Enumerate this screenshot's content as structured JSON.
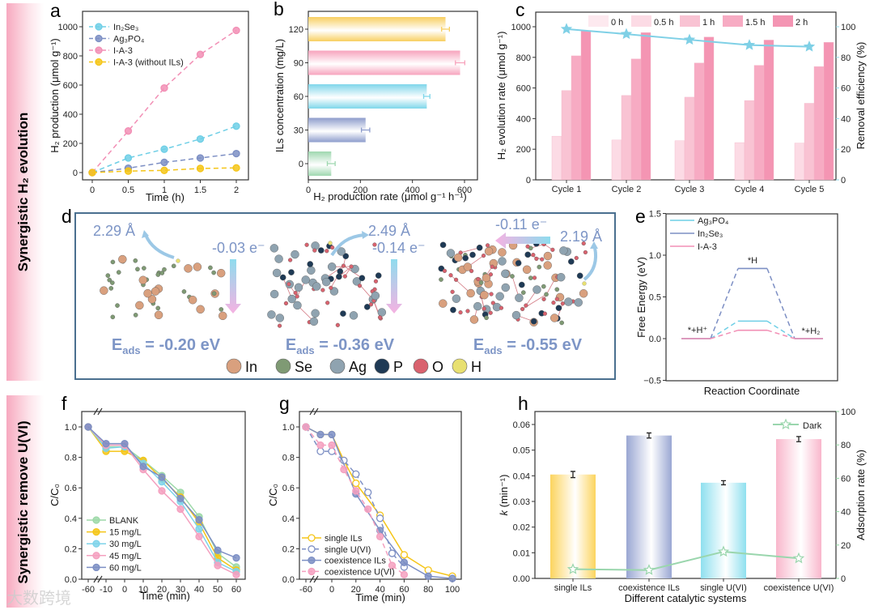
{
  "banners": {
    "top": "Synergistic H₂ evolution",
    "bottom": "Synergistic remove U(VI)"
  },
  "panel_letters": {
    "a": "a",
    "b": "b",
    "c": "c",
    "d": "d",
    "e": "e",
    "f": "f",
    "g": "g",
    "h": "h"
  },
  "watermark": "大数跨境",
  "colors": {
    "in2se3": "#6fcfe6",
    "ag3po4": "#7d8fc4",
    "ia3": "#f28fb5",
    "noils": "#f5c518",
    "blank": "#9dd9a8",
    "green": "#9fd8b0",
    "dark": "#9ad6ad",
    "frame": "#4a6f8f",
    "dtext": "#7d95c6"
  },
  "panel_d": {
    "labels": {
      "d1": "2.29 Å",
      "e1": "-0.03 e⁻",
      "d2": "2.49 Å",
      "e2": "-0.14 e⁻",
      "e3": "-0.11 e⁻",
      "d3": "2.19 Å"
    },
    "eads": [
      {
        "sym": "E",
        "sub": "ads",
        "val": " = -0.20 eV"
      },
      {
        "sym": "E",
        "sub": "ads",
        "val": " = -0.36 eV"
      },
      {
        "sym": "E",
        "sub": "ads",
        "val": " = -0.55 eV"
      }
    ],
    "atoms": [
      {
        "name": "In",
        "color": "#d9a07e"
      },
      {
        "name": "Se",
        "color": "#7f9a74"
      },
      {
        "name": "Ag",
        "color": "#8fa3b0"
      },
      {
        "name": "P",
        "color": "#1f3a55"
      },
      {
        "name": "O",
        "color": "#d9626e"
      },
      {
        "name": "H",
        "color": "#e8e070"
      }
    ]
  },
  "chart_data": [
    {
      "panel": "a",
      "type": "line",
      "xlabel": "Time (h)",
      "ylabel": "H₂ production (μmol g⁻¹)",
      "xlim": [
        -0.2,
        2.2
      ],
      "ylim": [
        -50,
        1080
      ],
      "xticks": [
        0,
        0.5,
        1,
        1.5,
        2
      ],
      "xticklabels": [
        "0",
        "0.5",
        "1",
        "1.5",
        "2"
      ],
      "yticks": [
        0,
        200,
        400,
        600,
        800,
        1000
      ],
      "yticklabels": [
        "0",
        "200",
        "400",
        "600",
        "800",
        "1000"
      ],
      "x": [
        0,
        0.5,
        1,
        1.5,
        2
      ],
      "legend": "top-left",
      "series": [
        {
          "name": "In₂Se₃",
          "color": "#6fcfe6",
          "values": [
            0,
            100,
            160,
            230,
            318
          ]
        },
        {
          "name": "Ag₃PO₄",
          "color": "#7d8fc4",
          "values": [
            0,
            30,
            70,
            100,
            130
          ]
        },
        {
          "name": "I-A-3",
          "color": "#f28fb5",
          "values": [
            0,
            285,
            580,
            810,
            975
          ]
        },
        {
          "name": "I-A-3 (without ILs)",
          "color": "#f5c518",
          "values": [
            0,
            10,
            15,
            28,
            32
          ]
        }
      ]
    },
    {
      "panel": "b",
      "type": "bar",
      "orientation": "horizontal",
      "xlabel": "H₂ production rate (μmol g⁻¹ h⁻¹)",
      "ylabel": "ILs concentration (mg/L)",
      "xlim": [
        0,
        620
      ],
      "xticks": [
        0,
        200,
        400,
        600
      ],
      "xticklabels": [
        "0",
        "200",
        "400",
        "600"
      ],
      "categories": [
        "0",
        "30",
        "60",
        "90",
        "120"
      ],
      "values": [
        88,
        220,
        455,
        583,
        527
      ],
      "errors": [
        15,
        16,
        12,
        18,
        15
      ],
      "colors": [
        "#9fd8b0",
        "#8d9ccc",
        "#7fd6ea",
        "#f7a3bd",
        "#f8cf60"
      ]
    },
    {
      "panel": "c",
      "type": "bar",
      "xlabel": "",
      "ylabel": "H₂ evolution rate (μmol g⁻¹)",
      "y2label": "Removal efficiency (%)",
      "ylim": [
        0,
        1100
      ],
      "y2lim": [
        0,
        110
      ],
      "yticks": [
        0,
        200,
        400,
        600,
        800,
        1000
      ],
      "yticklabels": [
        "0",
        "200",
        "400",
        "600",
        "800",
        "1000"
      ],
      "y2ticks": [
        0,
        20,
        40,
        60,
        80,
        100
      ],
      "y2ticklabels": [
        "0",
        "20",
        "40",
        "60",
        "80",
        "100"
      ],
      "categories": [
        "Cycle 1",
        "Cycle 2",
        "Cycle 3",
        "Cycle 4",
        "Cycle 5"
      ],
      "legend": "top",
      "series": [
        {
          "name": "0 h",
          "color": "#fde9ef",
          "values": [
            0,
            0,
            0,
            0,
            0
          ]
        },
        {
          "name": "0.5 h",
          "color": "#fcdbe5",
          "values": [
            285,
            260,
            255,
            243,
            240
          ]
        },
        {
          "name": "1 h",
          "color": "#f9c3d3",
          "values": [
            583,
            551,
            540,
            518,
            500
          ]
        },
        {
          "name": "1.5 h",
          "color": "#f7abc3",
          "values": [
            810,
            790,
            763,
            748,
            740
          ]
        },
        {
          "name": "2 h",
          "color": "#f495b3",
          "values": [
            975,
            962,
            933,
            913,
            898
          ]
        }
      ],
      "line": {
        "name": "Removal efficiency",
        "color": "#7fd0e6",
        "values": [
          98.5,
          95.2,
          91.5,
          88,
          87
        ]
      }
    },
    {
      "panel": "e",
      "type": "line",
      "xlabel": "Reaction Coordinate",
      "ylabel": "Free Energy (eV)",
      "ylim": [
        -0.5,
        1.5
      ],
      "yticks": [
        -0.5,
        0,
        0.5,
        1,
        1.5
      ],
      "yticklabels": [
        "−0.5",
        "0.0",
        "0.5",
        "1.0",
        "1.5"
      ],
      "states": [
        "*+H⁺",
        "*H",
        "*+H₂"
      ],
      "legend": "top-left",
      "series": [
        {
          "name": "Ag₃PO₄",
          "color": "#6fcfe6",
          "values": [
            0,
            0.21,
            0
          ]
        },
        {
          "name": "In₂Se₃",
          "color": "#7d8fc4",
          "values": [
            0,
            0.84,
            0
          ]
        },
        {
          "name": "I-A-3",
          "color": "#f28fb5",
          "values": [
            0,
            0.1,
            0
          ]
        }
      ]
    },
    {
      "panel": "f",
      "type": "line",
      "xlabel": "Time (min)",
      "ylabel": "C/C₀",
      "ylim": [
        0,
        1.1
      ],
      "axis_break": true,
      "xticks": [
        -60,
        -10,
        0,
        10,
        20,
        30,
        40,
        50,
        60
      ],
      "xticklabels": [
        "-60",
        "-10",
        "0",
        "10",
        "20",
        "30",
        "40",
        "50",
        "60"
      ],
      "yticks": [
        0,
        0.2,
        0.4,
        0.6,
        0.8,
        1.0
      ],
      "yticklabels": [
        "0.0",
        "0.2",
        "0.4",
        "0.6",
        "0.8",
        "1.0"
      ],
      "legend": "bottom-left",
      "x": [
        -60,
        -10,
        0,
        10,
        20,
        30,
        40,
        50,
        60
      ],
      "series": [
        {
          "name": "BLANK",
          "color": "#9dd9a8",
          "values": [
            1,
            0.87,
            0.87,
            0.78,
            0.68,
            0.57,
            0.41,
            0.17,
            0.08
          ]
        },
        {
          "name": "15 mg/L",
          "color": "#f5c518",
          "values": [
            1,
            0.84,
            0.84,
            0.78,
            0.66,
            0.54,
            0.37,
            0.14,
            0.06
          ]
        },
        {
          "name": "30 mg/L",
          "color": "#7fd3ea",
          "values": [
            1,
            0.86,
            0.87,
            0.76,
            0.64,
            0.51,
            0.33,
            0.11,
            0.05
          ]
        },
        {
          "name": "45 mg/L",
          "color": "#f4a0bf",
          "values": [
            1,
            0.88,
            0.88,
            0.72,
            0.58,
            0.46,
            0.28,
            0.09,
            0.03
          ]
        },
        {
          "name": "60 mg/L",
          "color": "#7d8fc4",
          "values": [
            1,
            0.89,
            0.89,
            0.74,
            0.67,
            0.53,
            0.39,
            0.19,
            0.14
          ]
        }
      ]
    },
    {
      "panel": "g",
      "type": "line",
      "xlabel": "Time (min)",
      "ylabel": "C/C₀",
      "ylim": [
        0,
        1.1
      ],
      "axis_break": true,
      "xticks": [
        -60,
        0,
        20,
        40,
        60,
        80,
        100
      ],
      "xticklabels": [
        "-60",
        "0",
        "20",
        "40",
        "60",
        "80",
        "100"
      ],
      "yticks": [
        0,
        0.2,
        0.4,
        0.6,
        0.8,
        1.0
      ],
      "yticklabels": [
        "0.0",
        "0.2",
        "0.4",
        "0.6",
        "0.8",
        "1.0"
      ],
      "legend": "bottom-left",
      "series": [
        {
          "name": "single ILs",
          "color": "#f5c518",
          "hollow": true,
          "dashed": false,
          "x": [
            -60,
            -10,
            0,
            10,
            20,
            40,
            60,
            80,
            100
          ],
          "values": [
            1,
            0.95,
            0.95,
            0.78,
            0.63,
            0.42,
            0.16,
            0.06,
            0.02
          ]
        },
        {
          "name": "single U(VI)",
          "color": "#7d8fc4",
          "hollow": true,
          "dashed": true,
          "x": [
            -60,
            -10,
            0,
            10,
            20,
            30,
            40,
            50,
            60
          ],
          "values": [
            1,
            0.84,
            0.84,
            0.78,
            0.69,
            0.57,
            0.4,
            0.17,
            0.08
          ]
        },
        {
          "name": "coexistence ILs",
          "color": "#7d8fc4",
          "hollow": false,
          "dashed": false,
          "x": [
            -60,
            -10,
            0,
            20,
            40,
            60,
            80,
            100
          ],
          "values": [
            1,
            0.95,
            0.95,
            0.56,
            0.32,
            0.11,
            0.02,
            0.005
          ]
        },
        {
          "name": "coexistence U(VI)",
          "color": "#f4a0bf",
          "hollow": false,
          "dashed": true,
          "x": [
            -60,
            -10,
            0,
            10,
            20,
            30,
            40,
            50,
            60
          ],
          "values": [
            1,
            0.88,
            0.88,
            0.72,
            0.58,
            0.46,
            0.28,
            0.09,
            0.03
          ]
        }
      ]
    },
    {
      "panel": "h",
      "type": "bar",
      "xlabel": "Different catalytic systems",
      "ylabel": "k (min⁻¹)",
      "y2label": "Adsorption rate (%)",
      "ylim": [
        0,
        0.065
      ],
      "y2lim": [
        0,
        100
      ],
      "yticks": [
        0,
        0.01,
        0.02,
        0.03,
        0.04,
        0.05,
        0.06
      ],
      "yticklabels": [
        "0.00",
        "0.01",
        "0.02",
        "0.03",
        "0.04",
        "0.05",
        "0.06"
      ],
      "y2ticks": [
        0,
        20,
        40,
        60,
        80,
        100
      ],
      "y2ticklabels": [
        "0",
        "20",
        "40",
        "60",
        "80",
        "100"
      ],
      "categories": [
        "single ILs",
        "coexistence ILs",
        "single U(VI)",
        "coexistence U(VI)"
      ],
      "values": [
        0.0405,
        0.0557,
        0.0373,
        0.0543
      ],
      "errors": [
        0.0012,
        0.001,
        0.0008,
        0.001
      ],
      "colors": [
        "#fcd45e",
        "#9aa7d3",
        "#8fe0ef",
        "#f9b7cc"
      ],
      "line": {
        "name": "Dark",
        "color": "#9ad6ad",
        "values": [
          5.5,
          5,
          16,
          12
        ]
      },
      "legend": "top-right"
    }
  ]
}
